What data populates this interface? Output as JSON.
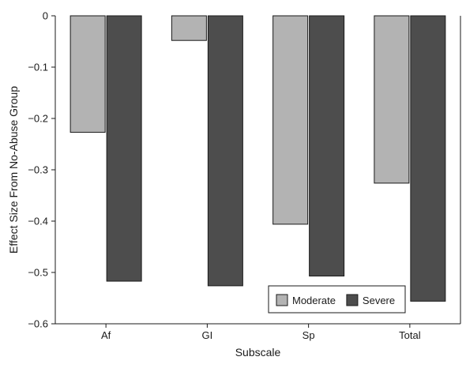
{
  "chart_data": {
    "type": "bar",
    "title": "",
    "xlabel": "Subscale",
    "ylabel": "Effect Size From No-Abuse Group",
    "categories": [
      "Af",
      "GI",
      "Sp",
      "Total"
    ],
    "series": [
      {
        "name": "Moderate",
        "color": "#b3b3b3",
        "values": [
          -0.227,
          -0.048,
          -0.406,
          -0.326
        ]
      },
      {
        "name": "Severe",
        "color": "#4d4d4d",
        "values": [
          -0.517,
          -0.526,
          -0.507,
          -0.556
        ]
      }
    ],
    "ylim": [
      -0.6,
      0
    ],
    "yticks": [
      0,
      -0.1,
      -0.2,
      -0.3,
      -0.4,
      -0.5,
      -0.6
    ],
    "ytick_labels": [
      "0",
      "−0.1",
      "−0.2",
      "−0.3",
      "−0.4",
      "−0.5",
      "−0.6"
    ],
    "grid": false,
    "legend_position": "bottom-right"
  }
}
